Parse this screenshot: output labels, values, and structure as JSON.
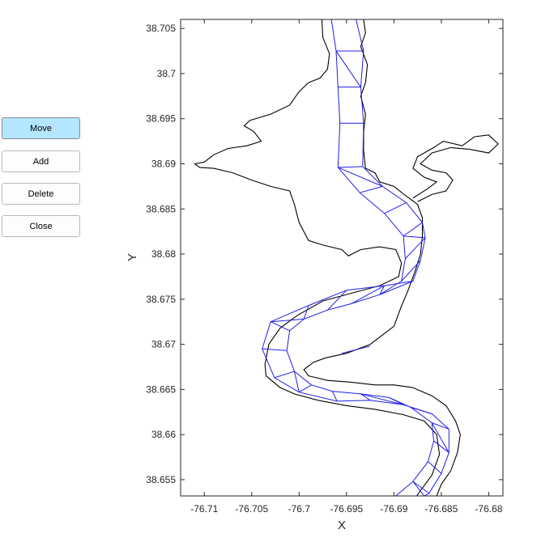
{
  "buttons": [
    {
      "label": "Move",
      "active": true
    },
    {
      "label": "Add",
      "active": false
    },
    {
      "label": "Delete",
      "active": false
    },
    {
      "label": "Close",
      "active": false
    }
  ],
  "colors": {
    "grid_mesh": "#1f1fe6",
    "shoreline": "#000000",
    "active_button": "#b4e6ff"
  },
  "chart_data": {
    "type": "line",
    "xlabel": "X",
    "ylabel": "Y",
    "xlim": [
      -76.7125,
      -76.6785
    ],
    "ylim": [
      38.6532,
      38.706
    ],
    "xticks": [
      -76.71,
      -76.705,
      -76.7,
      -76.695,
      -76.69,
      -76.685,
      -76.68
    ],
    "xtick_labels": [
      "-76.71",
      "-76.705",
      "-76.7",
      "-76.695",
      "-76.69",
      "-76.685",
      "-76.68"
    ],
    "yticks": [
      38.655,
      38.66,
      38.665,
      38.67,
      38.675,
      38.68,
      38.685,
      38.69,
      38.695,
      38.7,
      38.705
    ],
    "ytick_labels": [
      "38.655",
      "38.66",
      "38.665",
      "38.67",
      "38.675",
      "38.68",
      "38.685",
      "38.69",
      "38.695",
      "38.7",
      "38.705"
    ],
    "mesh_left": [
      [
        -76.6966,
        38.706
      ],
      [
        -76.6961,
        38.7025
      ],
      [
        -76.6959,
        38.6985
      ],
      [
        -76.6957,
        38.6945
      ],
      [
        -76.6959,
        38.6896
      ],
      [
        -76.6936,
        38.6868
      ],
      [
        -76.691,
        38.6845
      ],
      [
        -76.689,
        38.682
      ],
      [
        -76.6888,
        38.6795
      ],
      [
        -76.6892,
        38.677
      ],
      [
        -76.6915,
        38.6755
      ],
      [
        -76.6945,
        38.6745
      ],
      [
        -76.697,
        38.6738
      ],
      [
        -76.6995,
        38.6728
      ],
      [
        -76.701,
        38.6715
      ],
      [
        -76.7013,
        38.6693
      ],
      [
        -76.7005,
        38.667
      ],
      [
        -76.6987,
        38.6655
      ],
      [
        -76.6965,
        38.6648
      ],
      [
        -76.6935,
        38.6645
      ],
      [
        -76.6905,
        38.6641
      ],
      [
        -76.6882,
        38.663
      ],
      [
        -76.686,
        38.6613
      ],
      [
        -76.6858,
        38.6593
      ],
      [
        -76.6864,
        38.657
      ],
      [
        -76.688,
        38.6548
      ],
      [
        -76.6898,
        38.6532
      ]
    ],
    "mesh_right": [
      [
        -76.694,
        38.706
      ],
      [
        -76.6932,
        38.7025
      ],
      [
        -76.6935,
        38.6985
      ],
      [
        -76.6932,
        38.6945
      ],
      [
        -76.6933,
        38.6897
      ],
      [
        -76.6912,
        38.6875
      ],
      [
        -76.6887,
        38.6857
      ],
      [
        -76.687,
        38.6835
      ],
      [
        -76.6867,
        38.6818
      ],
      [
        -76.6872,
        38.6793
      ],
      [
        -76.688,
        38.677
      ],
      [
        -76.691,
        38.6765
      ],
      [
        -76.695,
        38.676
      ],
      [
        -76.699,
        38.6743
      ],
      [
        -76.703,
        38.6725
      ],
      [
        -76.7039,
        38.6695
      ],
      [
        -76.7026,
        38.6663
      ],
      [
        -76.7,
        38.6647
      ],
      [
        -76.696,
        38.6637
      ],
      [
        -76.6925,
        38.6638
      ],
      [
        -76.689,
        38.6633
      ],
      [
        -76.686,
        38.6623
      ],
      [
        -76.6842,
        38.6606
      ],
      [
        -76.6842,
        38.658
      ],
      [
        -76.685,
        38.6557
      ],
      [
        -76.6863,
        38.6535
      ],
      [
        -76.6868,
        38.6532
      ]
    ],
    "mesh_extra_nodes": [
      [
        -76.6925,
        38.6698
      ],
      [
        -76.6955,
        38.669
      ]
    ],
    "shoreline_main": [
      [
        -76.6976,
        38.706
      ],
      [
        -76.6975,
        38.704
      ],
      [
        -76.6968,
        38.7022
      ],
      [
        -76.697,
        38.7005
      ],
      [
        -76.6978,
        38.6995
      ],
      [
        -76.699,
        38.699
      ],
      [
        -76.7,
        38.698
      ],
      [
        -76.701,
        38.6965
      ],
      [
        -76.703,
        38.6955
      ],
      [
        -76.7052,
        38.6948
      ],
      [
        -76.7058,
        38.6942
      ],
      [
        -76.7048,
        38.6936
      ],
      [
        -76.704,
        38.6925
      ],
      [
        -76.7055,
        38.692
      ],
      [
        -76.7075,
        38.6917
      ],
      [
        -76.709,
        38.691
      ],
      [
        -76.71,
        38.6902
      ],
      [
        -76.711,
        38.69
      ],
      [
        -76.7105,
        38.6896
      ],
      [
        -76.709,
        38.6895
      ],
      [
        -76.707,
        38.689
      ],
      [
        -76.705,
        38.6882
      ],
      [
        -76.703,
        38.6875
      ],
      [
        -76.701,
        38.687
      ],
      [
        -76.7005,
        38.6855
      ],
      [
        -76.7,
        38.6835
      ],
      [
        -76.699,
        38.6815
      ],
      [
        -76.6975,
        38.681
      ],
      [
        -76.6955,
        38.6805
      ],
      [
        -76.6948,
        38.6798
      ],
      [
        -76.6935,
        38.6805
      ],
      [
        -76.6915,
        38.6808
      ],
      [
        -76.6898,
        38.6805
      ],
      [
        -76.6892,
        38.679
      ],
      [
        -76.6895,
        38.6775
      ],
      [
        -76.6915,
        38.6765
      ],
      [
        -76.694,
        38.6758
      ],
      [
        -76.6975,
        38.6748
      ],
      [
        -76.7002,
        38.6732
      ],
      [
        -76.702,
        38.6718
      ],
      [
        -76.7032,
        38.67
      ],
      [
        -76.7036,
        38.6678
      ],
      [
        -76.7035,
        38.6665
      ],
      [
        -76.702,
        38.6652
      ],
      [
        -76.7005,
        38.6645
      ],
      [
        -76.698,
        38.6638
      ],
      [
        -76.695,
        38.6632
      ],
      [
        -76.692,
        38.6628
      ],
      [
        -76.689,
        38.6622
      ],
      [
        -76.6868,
        38.6615
      ],
      [
        -76.6855,
        38.66
      ],
      [
        -76.6852,
        38.6578
      ],
      [
        -76.686,
        38.6555
      ],
      [
        -76.6872,
        38.6538
      ],
      [
        -76.6876,
        38.6532
      ]
    ],
    "shoreline_east": [
      [
        -76.6932,
        38.706
      ],
      [
        -76.693,
        38.7045
      ],
      [
        -76.6935,
        38.703
      ],
      [
        -76.6928,
        38.701
      ],
      [
        -76.693,
        38.699
      ],
      [
        -76.6935,
        38.6975
      ],
      [
        -76.693,
        38.6955
      ],
      [
        -76.6932,
        38.6935
      ],
      [
        -76.6932,
        38.6915
      ],
      [
        -76.693,
        38.6895
      ],
      [
        -76.692,
        38.689
      ],
      [
        -76.6915,
        38.688
      ],
      [
        -76.69,
        38.6875
      ],
      [
        -76.6888,
        38.6865
      ],
      [
        -76.6875,
        38.6855
      ],
      [
        -76.687,
        38.684
      ],
      [
        -76.687,
        38.682
      ],
      [
        -76.6872,
        38.68
      ],
      [
        -76.6878,
        38.678
      ],
      [
        -76.6885,
        38.676
      ],
      [
        -76.6893,
        38.674
      ],
      [
        -76.69,
        38.672
      ],
      [
        -76.6925,
        38.67
      ],
      [
        -76.695,
        38.669
      ],
      [
        -76.6972,
        38.6685
      ],
      [
        -76.6985,
        38.668
      ],
      [
        -76.6995,
        38.6672
      ],
      [
        -76.699,
        38.6665
      ],
      [
        -76.697,
        38.666
      ],
      [
        -76.6945,
        38.6658
      ],
      [
        -76.692,
        38.6655
      ],
      [
        -76.69,
        38.6655
      ],
      [
        -76.688,
        38.6652
      ],
      [
        -76.686,
        38.6643
      ],
      [
        -76.6845,
        38.6632
      ],
      [
        -76.6835,
        38.6615
      ],
      [
        -76.683,
        38.66
      ],
      [
        -76.6833,
        38.658
      ],
      [
        -76.684,
        38.656
      ],
      [
        -76.685,
        38.6545
      ],
      [
        -76.6855,
        38.6532
      ]
    ],
    "shoreline_creek": [
      [
        -76.6875,
        38.6858
      ],
      [
        -76.686,
        38.6866
      ],
      [
        -76.6845,
        38.687
      ],
      [
        -76.6838,
        38.6882
      ],
      [
        -76.6845,
        38.689
      ],
      [
        -76.686,
        38.6893
      ],
      [
        -76.6872,
        38.69
      ],
      [
        -76.686,
        38.6912
      ],
      [
        -76.684,
        38.6918
      ],
      [
        -76.682,
        38.6916
      ],
      [
        -76.68,
        38.6912
      ],
      [
        -76.679,
        38.6922
      ],
      [
        -76.68,
        38.6932
      ],
      [
        -76.6815,
        38.693
      ],
      [
        -76.6828,
        38.692
      ],
      [
        -76.6848,
        38.6925
      ],
      [
        -76.6858,
        38.6918
      ],
      [
        -76.6875,
        38.6908
      ],
      [
        -76.688,
        38.6895
      ],
      [
        -76.6868,
        38.6885
      ],
      [
        -76.6855,
        38.688
      ],
      [
        -76.6865,
        38.6872
      ],
      [
        -76.688,
        38.6862
      ]
    ]
  }
}
